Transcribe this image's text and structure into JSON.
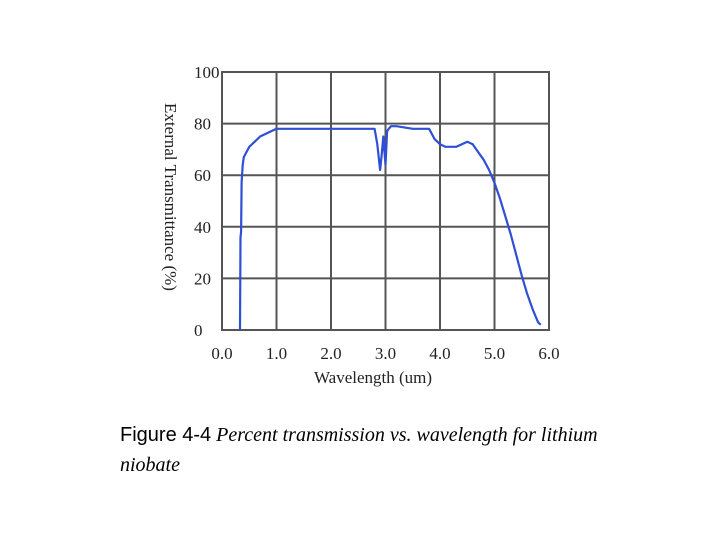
{
  "chart_data": {
    "type": "line",
    "xlabel": "Wavelength (um)",
    "ylabel": "External Transmittance (%)",
    "xlim": [
      0,
      6
    ],
    "ylim": [
      0,
      100
    ],
    "xticks": [
      "0.0",
      "1.0",
      "2.0",
      "3.0",
      "4.0",
      "5.0",
      "6.0"
    ],
    "yticks": [
      "0",
      "20",
      "40",
      "60",
      "80",
      "100"
    ],
    "grid": true,
    "line_color": "#2f4fd6",
    "series": [
      {
        "x": [
          0.33,
          0.34,
          0.35,
          0.36,
          0.38,
          0.4,
          0.45,
          0.5,
          0.6,
          0.7,
          0.8,
          0.9,
          1.0,
          1.5,
          2.0,
          2.5,
          2.8,
          2.85,
          2.9,
          2.93,
          2.96,
          3.0,
          3.03,
          3.06,
          3.1,
          3.2,
          3.5,
          3.8,
          3.9,
          4.0,
          4.1,
          4.3,
          4.5,
          4.6,
          4.7,
          4.8,
          4.9,
          5.0,
          5.1,
          5.2,
          5.3,
          5.4,
          5.5,
          5.6,
          5.7,
          5.8,
          5.85
        ],
        "y": [
          0,
          36,
          38,
          57,
          64,
          67,
          69,
          71,
          73,
          75,
          76,
          77,
          78,
          78,
          78,
          78,
          78,
          72,
          62,
          68,
          75,
          64,
          77,
          78,
          79,
          79,
          78,
          78,
          74,
          72,
          71,
          71,
          73,
          72,
          69,
          66,
          62,
          57,
          51,
          44,
          37,
          29,
          21,
          14,
          8,
          3,
          2
        ]
      }
    ]
  },
  "caption": {
    "label": "Figure 4-4",
    "text": "Percent transmission vs. wavelength for lithium niobate"
  }
}
